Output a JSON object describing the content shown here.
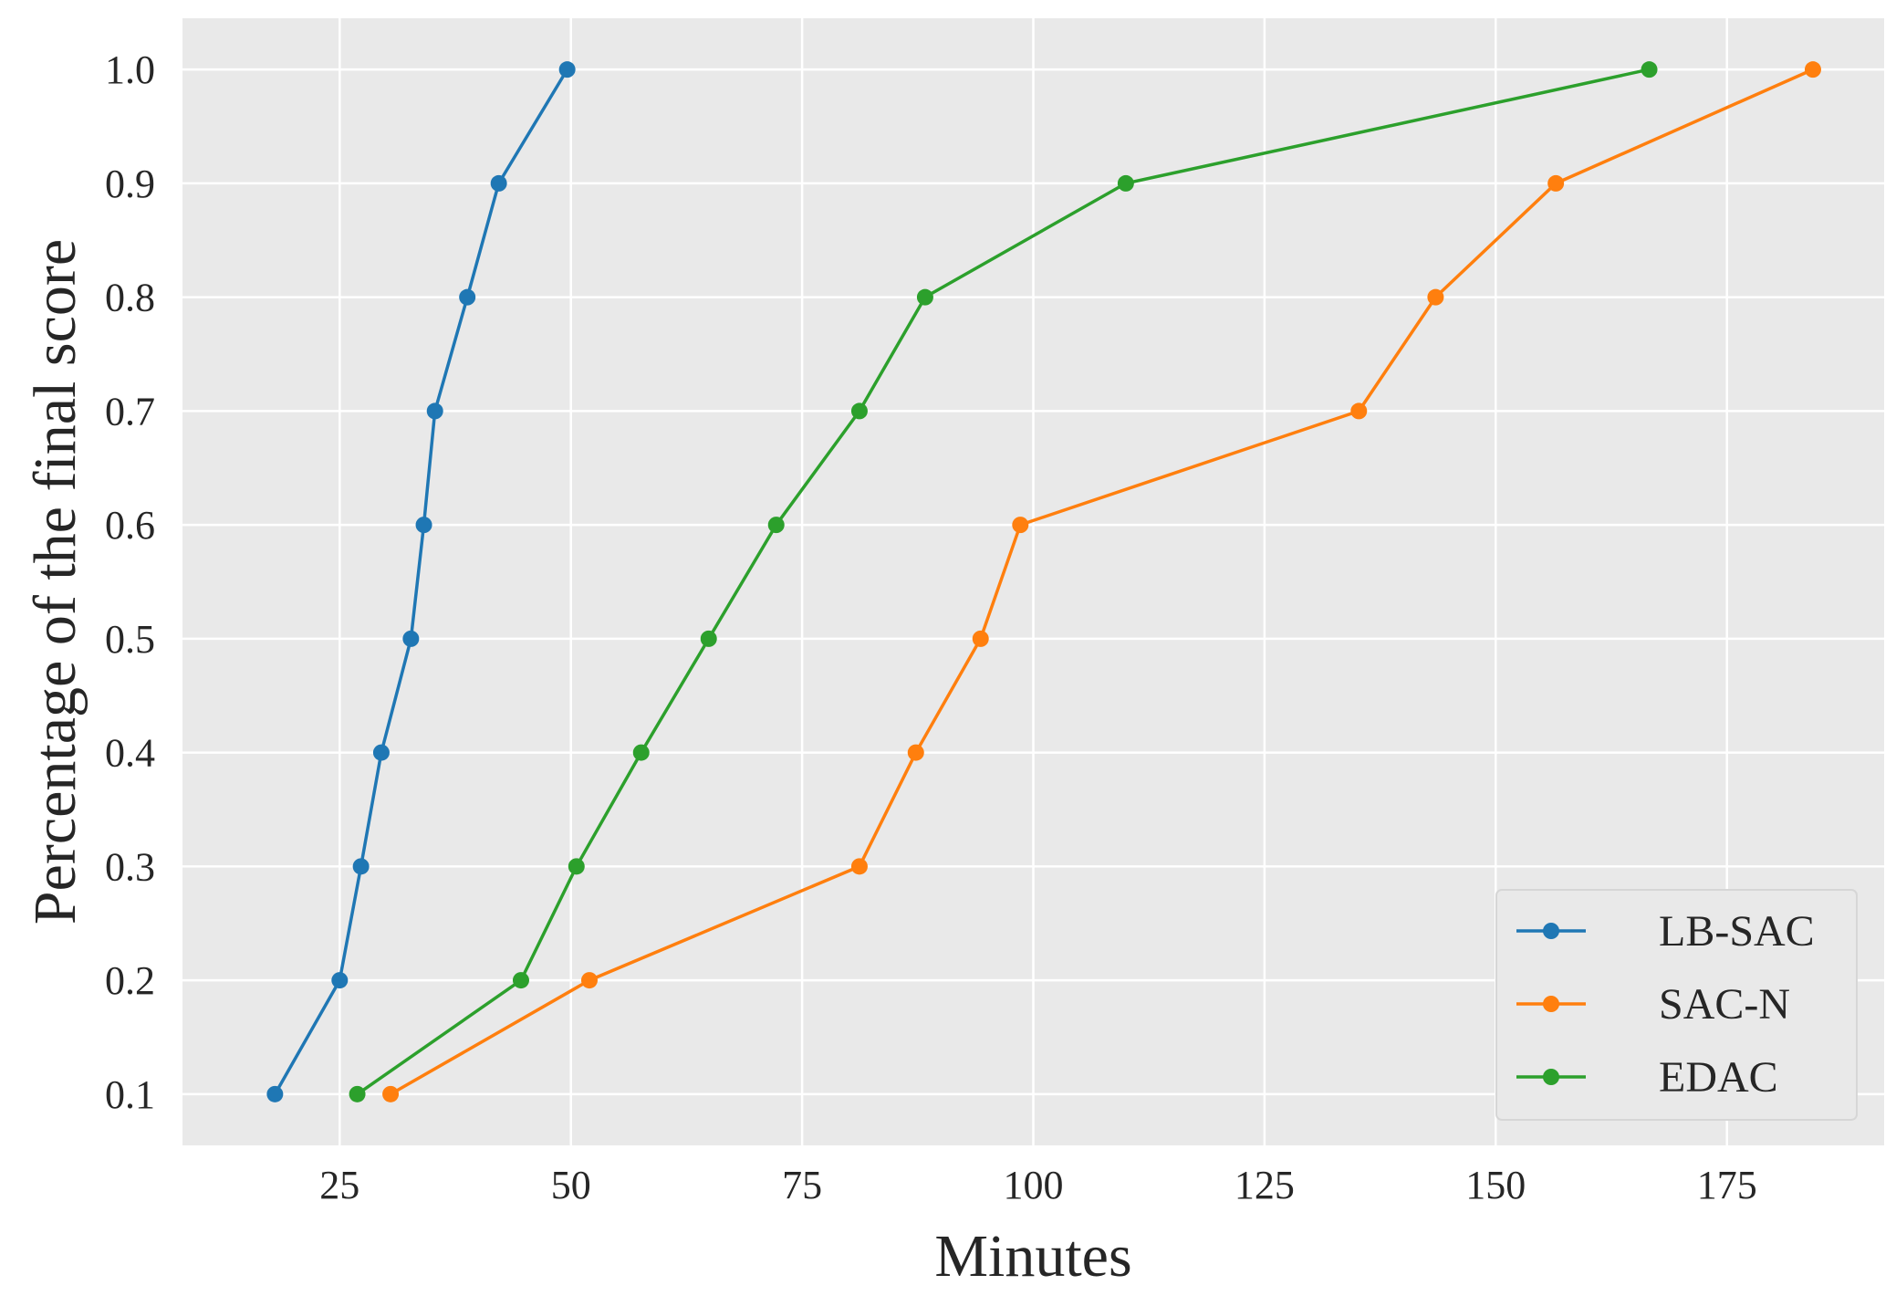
{
  "chart_data": {
    "type": "line",
    "xlabel": "Minutes",
    "ylabel": "Percentage of the final score",
    "xlim": [
      8,
      192
    ],
    "ylim": [
      0.055,
      1.045
    ],
    "x_ticks": [
      25,
      50,
      75,
      100,
      125,
      150,
      175
    ],
    "x_tick_labels": [
      "25",
      "50",
      "75",
      "100",
      "125",
      "150",
      "175"
    ],
    "y_ticks": [
      0.1,
      0.2,
      0.3,
      0.4,
      0.5,
      0.6,
      0.7,
      0.8,
      0.9,
      1.0
    ],
    "y_tick_labels": [
      "0.1",
      "0.2",
      "0.3",
      "0.4",
      "0.5",
      "0.6",
      "0.7",
      "0.8",
      "0.9",
      "1.0"
    ],
    "grid": true,
    "legend_position": "lower-right",
    "background": "#e9e9e9",
    "grid_color": "#ffffff",
    "series": [
      {
        "name": "LB-SAC",
        "color": "#1f77b4",
        "x": [
          18.0,
          25.0,
          27.3,
          29.5,
          32.7,
          34.1,
          35.3,
          38.8,
          42.2,
          49.6
        ],
        "y": [
          0.1,
          0.2,
          0.3,
          0.4,
          0.5,
          0.6,
          0.7,
          0.8,
          0.9,
          1.0
        ]
      },
      {
        "name": "SAC-N",
        "color": "#ff7f0e",
        "x": [
          30.5,
          52.0,
          81.2,
          87.3,
          94.3,
          98.6,
          135.2,
          143.5,
          156.5,
          184.3
        ],
        "y": [
          0.1,
          0.2,
          0.3,
          0.4,
          0.5,
          0.6,
          0.7,
          0.8,
          0.9,
          1.0
        ]
      },
      {
        "name": "EDAC",
        "color": "#2ca02c",
        "x": [
          26.9,
          44.6,
          50.6,
          57.6,
          64.9,
          72.2,
          81.2,
          88.3,
          110.0,
          166.6
        ],
        "y": [
          0.1,
          0.2,
          0.3,
          0.4,
          0.5,
          0.6,
          0.7,
          0.8,
          0.9,
          1.0
        ]
      }
    ]
  }
}
